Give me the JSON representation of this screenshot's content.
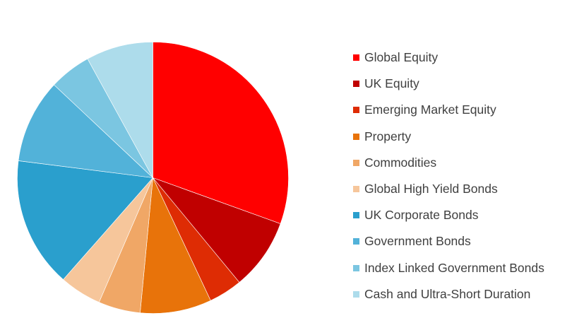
{
  "chart_data": {
    "type": "pie",
    "title": "",
    "start_angle_deg": 0,
    "direction": "clockwise",
    "legend_position": "right",
    "slices": [
      {
        "label": "Global Equity",
        "value": 30.5,
        "color": "#FF0000"
      },
      {
        "label": "UK Equity",
        "value": 8.5,
        "color": "#C00000"
      },
      {
        "label": "Emerging Market Equity",
        "value": 4.0,
        "color": "#DE2C04"
      },
      {
        "label": "Property",
        "value": 8.5,
        "color": "#E8730A"
      },
      {
        "label": "Commodities",
        "value": 5.0,
        "color": "#F0A766"
      },
      {
        "label": "Global High Yield Bonds",
        "value": 5.0,
        "color": "#F6C69B"
      },
      {
        "label": "UK Corporate Bonds",
        "value": 15.5,
        "color": "#2A9FCD"
      },
      {
        "label": "Government Bonds",
        "value": 10.0,
        "color": "#52B2D9"
      },
      {
        "label": "Index Linked Government Bonds",
        "value": 5.0,
        "color": "#7BC6E1"
      },
      {
        "label": "Cash and Ultra-Short Duration",
        "value": 8.0,
        "color": "#ADDCEB"
      }
    ]
  }
}
